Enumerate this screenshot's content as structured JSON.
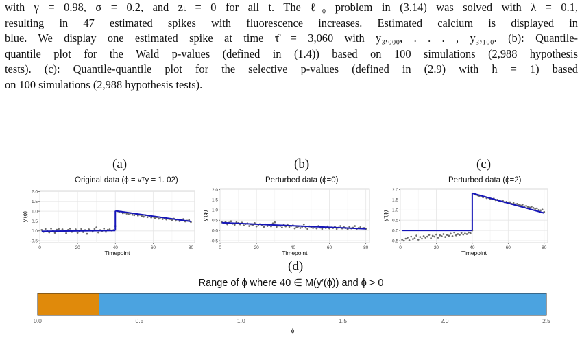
{
  "caption_lines": [
    "with γ = 0.98, σ = 0.2, and zₜ = 0 for all t. The ℓ₀ problem in (3.14) was solved with λ = 0.1,",
    "resulting in 47 estimated spikes with fluorescence increases. Estimated calcium is displayed in",
    "blue. We display one estimated spike at time τ̂ = 3,060 with y₃,₀₀₀, . . . , y₃,₁₀₀. (b): Quantile-",
    "quantile plot for the Wald p-values (defined in (1.4)) based on 100 simulations (2,988 hypothesis",
    "tests). (c): Quantile-quantile plot for the selective p-values (defined in (2.9) with h = 1) based",
    "on 100 simulations (2,988 hypothesis tests)."
  ],
  "panels": [
    {
      "letter": "(a)",
      "title": "Original data (ϕ = vᵀy = 1. 02)"
    },
    {
      "letter": "(b)",
      "title": "Perturbed data (ϕ=0)"
    },
    {
      "letter": "(c)",
      "title": "Perturbed data (ϕ=2)"
    }
  ],
  "range_panel": {
    "letter": "(d)",
    "title": "Range of ϕ where 40 ∈ M(y′(ϕ)) and ϕ > 0",
    "xlabel": "ϕ"
  },
  "chart_data": [
    {
      "type": "scatter",
      "title": "Original data (ϕ = vᵀy = 1. 02)",
      "xlabel": "Timepoint",
      "ylabel": "y′(ϕ)",
      "xlim": [
        0,
        82
      ],
      "ylim": [
        -0.6,
        2.05
      ],
      "xticks": [
        0,
        20,
        40,
        60,
        80
      ],
      "yticks": [
        -0.5,
        0.0,
        0.5,
        1.0,
        1.5,
        2.0
      ],
      "ytick_labels": [
        "-0.5",
        "0.0",
        "0.5",
        "1.0",
        "1.5",
        "2.0"
      ],
      "grid": true,
      "points": {
        "x": [
          1,
          2,
          3,
          4,
          5,
          6,
          7,
          8,
          9,
          10,
          11,
          12,
          13,
          14,
          15,
          16,
          17,
          18,
          19,
          20,
          21,
          22,
          23,
          24,
          25,
          26,
          27,
          28,
          29,
          30,
          31,
          32,
          33,
          34,
          35,
          36,
          37,
          38,
          39,
          40,
          41,
          42,
          43,
          44,
          45,
          46,
          47,
          48,
          49,
          50,
          51,
          52,
          53,
          54,
          55,
          56,
          57,
          58,
          59,
          60,
          61,
          62,
          63,
          64,
          65,
          66,
          67,
          68,
          69,
          70,
          71,
          72,
          73,
          74,
          75,
          76,
          77,
          78,
          79,
          80
        ],
        "y": [
          0.05,
          -0.05,
          0.1,
          0.0,
          -0.08,
          0.12,
          0.02,
          -0.1,
          0.06,
          0.1,
          -0.02,
          0.08,
          0.0,
          -0.12,
          0.05,
          0.12,
          -0.05,
          0.02,
          0.08,
          -0.1,
          0.0,
          0.1,
          -0.06,
          0.04,
          -0.15,
          0.08,
          0.02,
          -0.04,
          0.1,
          0.18,
          -0.08,
          0.04,
          0.0,
          0.12,
          -0.05,
          0.06,
          0.08,
          0.02,
          0.04,
          0.25,
          1.0,
          0.95,
          0.98,
          0.9,
          0.92,
          0.88,
          0.85,
          0.9,
          0.82,
          0.8,
          0.84,
          0.78,
          0.82,
          0.75,
          0.72,
          0.8,
          0.7,
          0.74,
          0.68,
          0.72,
          0.66,
          0.7,
          0.62,
          0.68,
          0.6,
          0.64,
          0.58,
          0.62,
          0.6,
          0.56,
          0.62,
          0.52,
          0.58,
          0.5,
          0.55,
          0.6,
          0.48,
          0.52,
          0.55,
          0.45
        ]
      },
      "fit_segments": [
        {
          "x": [
            1,
            40
          ],
          "y": [
            -0.02,
            0.02
          ]
        },
        {
          "x": [
            40,
            40
          ],
          "y": [
            0.02,
            1.02
          ]
        },
        {
          "x": [
            40,
            80
          ],
          "y": [
            1.02,
            0.48
          ]
        }
      ]
    },
    {
      "type": "scatter",
      "title": "Perturbed data (ϕ=0)",
      "xlabel": "Timepoint",
      "ylabel": "y′(ϕ)",
      "xlim": [
        0,
        82
      ],
      "ylim": [
        -0.6,
        2.05
      ],
      "xticks": [
        0,
        20,
        40,
        60,
        80
      ],
      "yticks": [
        -0.5,
        0.0,
        0.5,
        1.0,
        1.5,
        2.0
      ],
      "ytick_labels": [
        "-0.5",
        "0.0",
        "0.5",
        "1.0",
        "1.5",
        "2.0"
      ],
      "grid": true,
      "points": {
        "x": [
          1,
          2,
          3,
          4,
          5,
          6,
          7,
          8,
          9,
          10,
          11,
          12,
          13,
          14,
          15,
          16,
          17,
          18,
          19,
          20,
          21,
          22,
          23,
          24,
          25,
          26,
          27,
          28,
          29,
          30,
          31,
          32,
          33,
          34,
          35,
          36,
          37,
          38,
          39,
          40,
          41,
          42,
          43,
          44,
          45,
          46,
          47,
          48,
          49,
          50,
          51,
          52,
          53,
          54,
          55,
          56,
          57,
          58,
          59,
          60,
          61,
          62,
          63,
          64,
          65,
          66,
          67,
          68,
          69,
          70,
          71,
          72,
          73,
          74,
          75,
          76,
          77,
          78,
          79,
          80
        ],
        "y": [
          0.4,
          0.35,
          0.42,
          0.3,
          0.38,
          0.45,
          0.33,
          0.28,
          0.4,
          0.36,
          0.3,
          0.38,
          0.25,
          0.32,
          0.35,
          0.22,
          0.3,
          0.28,
          0.36,
          0.2,
          0.28,
          0.32,
          0.25,
          0.18,
          0.3,
          0.22,
          0.26,
          0.2,
          0.35,
          0.4,
          0.18,
          0.24,
          0.22,
          0.15,
          0.28,
          0.2,
          0.3,
          0.18,
          0.22,
          0.25,
          0.1,
          0.16,
          0.2,
          0.12,
          0.18,
          0.3,
          0.14,
          0.08,
          0.2,
          0.16,
          0.12,
          0.18,
          0.1,
          0.22,
          0.14,
          0.08,
          0.16,
          0.12,
          0.2,
          0.1,
          0.15,
          0.12,
          0.18,
          0.08,
          0.14,
          0.22,
          0.1,
          0.16,
          0.12,
          0.06,
          0.18,
          0.1,
          0.14,
          0.22,
          0.08,
          0.12,
          0.16,
          0.1,
          0.12,
          0.08
        ]
      },
      "fit_segments": [
        {
          "x": [
            1,
            80
          ],
          "y": [
            0.38,
            0.08
          ]
        }
      ]
    },
    {
      "type": "scatter",
      "title": "Perturbed data (ϕ=2)",
      "xlabel": "Timepoint",
      "ylabel": "y′(ϕ)",
      "xlim": [
        0,
        82
      ],
      "ylim": [
        -0.6,
        2.05
      ],
      "xticks": [
        0,
        20,
        40,
        60,
        80
      ],
      "yticks": [
        -0.5,
        0.0,
        0.5,
        1.0,
        1.5,
        2.0
      ],
      "ytick_labels": [
        "-0.5",
        "0.0",
        "0.5",
        "1.0",
        "1.5",
        "2.0"
      ],
      "grid": true,
      "points": {
        "x": [
          1,
          2,
          3,
          4,
          5,
          6,
          7,
          8,
          9,
          10,
          11,
          12,
          13,
          14,
          15,
          16,
          17,
          18,
          19,
          20,
          21,
          22,
          23,
          24,
          25,
          26,
          27,
          28,
          29,
          30,
          31,
          32,
          33,
          34,
          35,
          36,
          37,
          38,
          39,
          40,
          41,
          42,
          43,
          44,
          45,
          46,
          47,
          48,
          49,
          50,
          51,
          52,
          53,
          54,
          55,
          56,
          57,
          58,
          59,
          60,
          61,
          62,
          63,
          64,
          65,
          66,
          67,
          68,
          69,
          70,
          71,
          72,
          73,
          74,
          75,
          76,
          77,
          78,
          79,
          80
        ],
        "y": [
          -0.45,
          -0.5,
          -0.4,
          -0.35,
          -0.48,
          -0.3,
          -0.42,
          -0.38,
          -0.25,
          -0.45,
          -0.32,
          -0.4,
          -0.28,
          -0.35,
          -0.3,
          -0.22,
          -0.38,
          -0.26,
          -0.3,
          -0.2,
          -0.35,
          -0.24,
          -0.28,
          -0.18,
          -0.32,
          -0.22,
          -0.26,
          -0.16,
          -0.28,
          -0.1,
          -0.24,
          -0.18,
          -0.22,
          -0.12,
          -0.2,
          -0.15,
          -0.18,
          -0.1,
          -0.14,
          0.0,
          1.8,
          1.75,
          1.72,
          1.68,
          1.7,
          1.62,
          1.65,
          1.58,
          1.6,
          1.55,
          1.52,
          1.56,
          1.48,
          1.5,
          1.45,
          1.42,
          1.46,
          1.38,
          1.4,
          1.35,
          1.38,
          1.3,
          1.34,
          1.28,
          1.3,
          1.25,
          1.22,
          1.26,
          1.18,
          1.2,
          1.15,
          1.12,
          1.16,
          1.1,
          1.05,
          1.08,
          1.0,
          0.98,
          1.02,
          0.9
        ]
      },
      "fit_segments": [
        {
          "x": [
            1,
            40
          ],
          "y": [
            0.0,
            0.0
          ]
        },
        {
          "x": [
            40,
            40
          ],
          "y": [
            0.0,
            1.82
          ]
        },
        {
          "x": [
            40,
            80
          ],
          "y": [
            1.82,
            0.85
          ]
        }
      ]
    },
    {
      "type": "bar",
      "title": "Range of ϕ where 40 ∈ M(y′(ϕ)) and ϕ > 0",
      "xlabel": "ϕ",
      "xlim": [
        0,
        2.5
      ],
      "xticks": [
        0.0,
        0.5,
        1.0,
        1.5,
        2.0,
        2.5
      ],
      "xtick_labels": [
        "0.0",
        "0.5",
        "1.0",
        "1.5",
        "2.0",
        "2.5"
      ],
      "segments": [
        {
          "from": 0.0,
          "to": 0.3,
          "color": "#E08A0B"
        },
        {
          "from": 0.3,
          "to": 2.5,
          "color": "#4BA3E0"
        }
      ]
    }
  ],
  "colors": {
    "fit": "#1515B8",
    "points": "#6b6b6b",
    "grid": "#e6e6e6",
    "panel_border": "#cfcfcf"
  }
}
